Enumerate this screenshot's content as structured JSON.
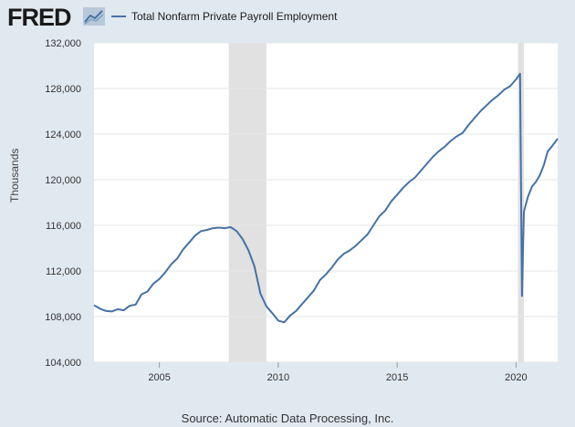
{
  "header": {
    "logo_text": "FRED",
    "logo_icon": "trend-chart-icon"
  },
  "colors": {
    "background": "#e1e9f0",
    "plot_background": "#ffffff",
    "series": "#4572a7",
    "recession": "#e1e1e1",
    "grid": "#e6e6e6",
    "axis_text": "#333333"
  },
  "chart_data": {
    "type": "line",
    "title": "",
    "xlabel": "",
    "ylabel": "Thousands",
    "xlim": [
      2002.25,
      2021.75
    ],
    "ylim": [
      104000,
      132000
    ],
    "yticks": [
      104000,
      108000,
      112000,
      116000,
      120000,
      124000,
      128000,
      132000
    ],
    "ytick_labels": [
      "104,000",
      "108,000",
      "112,000",
      "116,000",
      "120,000",
      "124,000",
      "128,000",
      "132,000"
    ],
    "xticks": [
      2005,
      2010,
      2015,
      2020
    ],
    "xtick_labels": [
      "2005",
      "2010",
      "2015",
      "2020"
    ],
    "grid": "horizontal",
    "legend": "top-left",
    "recessions": [
      [
        2007.92,
        2009.5
      ],
      [
        2020.08,
        2020.33
      ]
    ],
    "series": [
      {
        "name": "Total Nonfarm Private Payroll Employment",
        "x": [
          2002.25,
          2002.5,
          2002.75,
          2003.0,
          2003.25,
          2003.5,
          2003.75,
          2004.0,
          2004.25,
          2004.5,
          2004.75,
          2005.0,
          2005.25,
          2005.5,
          2005.75,
          2006.0,
          2006.25,
          2006.5,
          2006.75,
          2007.0,
          2007.25,
          2007.5,
          2007.75,
          2008.0,
          2008.25,
          2008.5,
          2008.75,
          2009.0,
          2009.25,
          2009.5,
          2009.75,
          2010.0,
          2010.25,
          2010.5,
          2010.75,
          2011.0,
          2011.25,
          2011.5,
          2011.75,
          2012.0,
          2012.25,
          2012.5,
          2012.75,
          2013.0,
          2013.25,
          2013.5,
          2013.75,
          2014.0,
          2014.25,
          2014.5,
          2014.75,
          2015.0,
          2015.25,
          2015.5,
          2015.75,
          2016.0,
          2016.25,
          2016.5,
          2016.75,
          2017.0,
          2017.25,
          2017.5,
          2017.75,
          2018.0,
          2018.25,
          2018.5,
          2018.75,
          2019.0,
          2019.25,
          2019.5,
          2019.75,
          2020.0,
          2020.17,
          2020.25,
          2020.33,
          2020.5,
          2020.67,
          2020.83,
          2021.0,
          2021.17,
          2021.33,
          2021.5,
          2021.75
        ],
        "values": [
          109000,
          108700,
          108500,
          108450,
          108650,
          108550,
          108950,
          109050,
          109950,
          110200,
          110900,
          111300,
          111900,
          112600,
          113100,
          113900,
          114500,
          115100,
          115500,
          115600,
          115750,
          115800,
          115750,
          115850,
          115500,
          114800,
          113800,
          112400,
          110000,
          108900,
          108300,
          107650,
          107500,
          108100,
          108500,
          109100,
          109700,
          110300,
          111200,
          111700,
          112300,
          113000,
          113500,
          113800,
          114200,
          114700,
          115200,
          116000,
          116800,
          117300,
          118100,
          118700,
          119300,
          119800,
          120200,
          120800,
          121400,
          122000,
          122500,
          122900,
          123400,
          123800,
          124100,
          124800,
          125400,
          126000,
          126500,
          127000,
          127400,
          127900,
          128200,
          128800,
          129300,
          109800,
          117200,
          118500,
          119400,
          119800,
          120400,
          121300,
          122500,
          122900,
          123600
        ]
      }
    ]
  },
  "source": "Source: Automatic Data Processing, Inc."
}
